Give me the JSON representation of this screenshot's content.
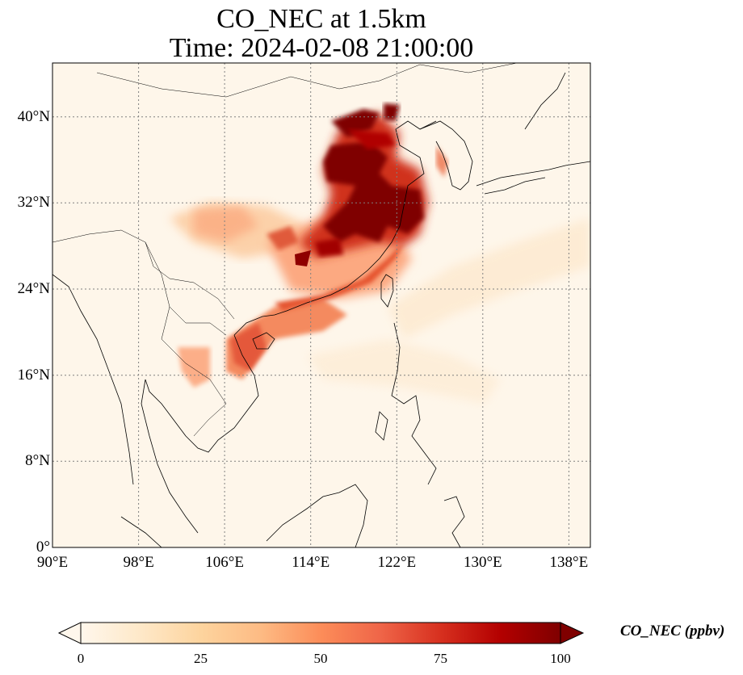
{
  "title": {
    "line1": "CO_NEC at 1.5km",
    "line2": "Time: 2024-02-08 21:00:00"
  },
  "map": {
    "projection": "PlateCarree",
    "extent_lon": [
      90,
      140
    ],
    "extent_lat": [
      0,
      45
    ],
    "gridlines": true,
    "gridline_style": "dotted",
    "coastlines": true,
    "borders": true,
    "x_ticks": [
      "90°E",
      "98°E",
      "106°E",
      "114°E",
      "122°E",
      "130°E",
      "138°E"
    ],
    "y_ticks": [
      "0°",
      "8°N",
      "16°N",
      "24°N",
      "32°N",
      "40°N"
    ]
  },
  "colorbar": {
    "label": "CO_NEC (ppbv)",
    "ticks": [
      "0",
      "25",
      "50",
      "75",
      "100"
    ],
    "range": [
      0,
      100
    ],
    "extend": "both",
    "colormap": "OrRd",
    "colors": [
      "#fff7ec",
      "#fee8c8",
      "#fdd49e",
      "#fdbb84",
      "#fc8d59",
      "#ef6548",
      "#d7301f",
      "#b30000",
      "#7f0000"
    ]
  }
}
